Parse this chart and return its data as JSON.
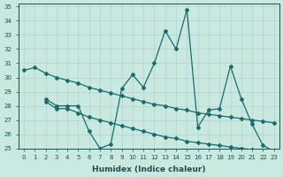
{
  "xlabel": "Humidex (Indice chaleur)",
  "bg_color": "#c8e8e0",
  "grid_color": "#b0d4cc",
  "line_color": "#1a6b6b",
  "xlim": [
    -0.5,
    23.5
  ],
  "ylim": [
    25,
    35.2
  ],
  "yticks": [
    25,
    26,
    27,
    28,
    29,
    30,
    31,
    32,
    33,
    34,
    35
  ],
  "xticks": [
    0,
    1,
    2,
    3,
    4,
    5,
    6,
    7,
    8,
    9,
    10,
    11,
    12,
    13,
    14,
    15,
    16,
    17,
    18,
    19,
    20,
    21,
    22,
    23
  ],
  "line1_x": [
    0,
    1,
    2,
    3,
    4,
    5,
    6,
    7,
    8,
    9,
    10,
    11,
    12,
    13,
    14,
    15,
    16,
    17,
    18,
    19,
    20,
    21,
    22,
    23
  ],
  "line1_y": [
    30.5,
    30.7,
    30.3,
    30.0,
    29.8,
    29.6,
    29.3,
    29.1,
    28.9,
    28.7,
    28.5,
    28.3,
    28.1,
    28.0,
    27.8,
    27.7,
    27.5,
    27.4,
    27.3,
    27.2,
    27.1,
    27.0,
    26.9,
    26.8
  ],
  "line2_x": [
    2,
    3,
    4,
    5,
    6,
    7,
    8,
    9,
    10,
    11,
    12,
    13,
    14,
    15,
    16,
    17,
    18,
    19,
    20,
    21,
    22,
    23
  ],
  "line2_y": [
    28.5,
    28.0,
    28.0,
    28.0,
    26.2,
    25.0,
    25.3,
    29.2,
    30.2,
    29.3,
    31.0,
    33.3,
    32.0,
    34.8,
    26.5,
    27.7,
    27.8,
    30.8,
    28.5,
    26.7,
    25.2,
    24.8
  ],
  "line3_x": [
    2,
    3,
    4,
    5,
    6,
    7,
    8,
    9,
    10,
    11,
    12,
    13,
    14,
    15,
    16,
    17,
    18,
    19,
    20,
    21,
    22,
    23
  ],
  "line3_y": [
    28.3,
    27.8,
    27.8,
    27.5,
    27.2,
    27.0,
    26.8,
    26.6,
    26.4,
    26.2,
    26.0,
    25.8,
    25.7,
    25.5,
    25.4,
    25.3,
    25.2,
    25.1,
    25.0,
    24.9,
    24.8,
    24.7
  ]
}
